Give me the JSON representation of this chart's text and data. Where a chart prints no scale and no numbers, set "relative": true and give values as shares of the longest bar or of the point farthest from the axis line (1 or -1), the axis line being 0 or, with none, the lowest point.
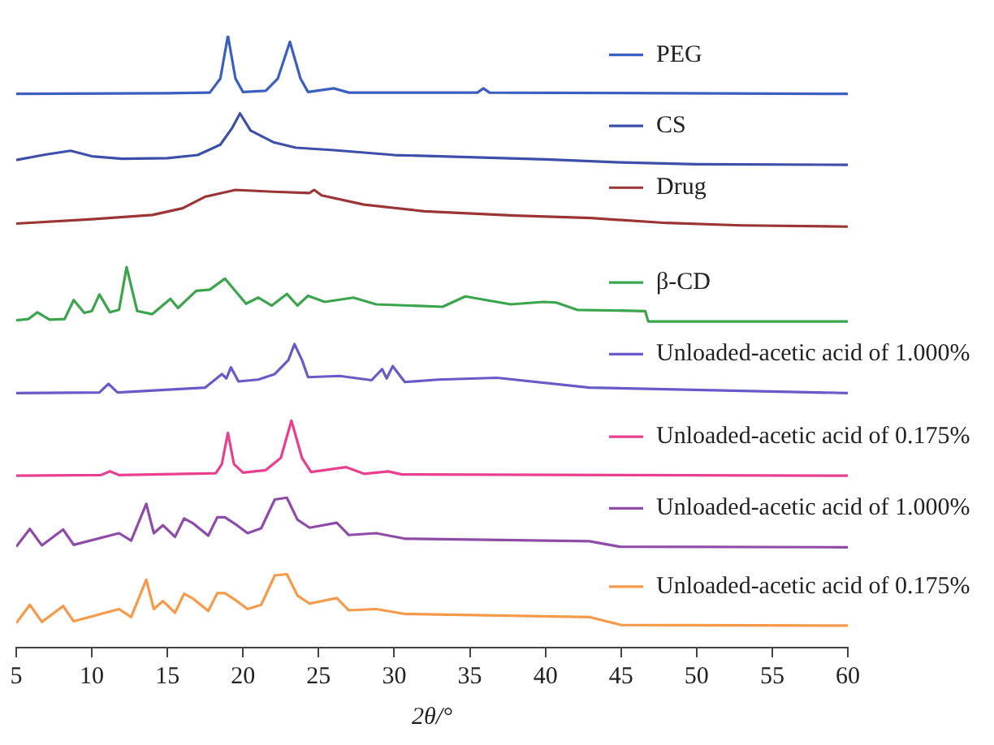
{
  "chart_data": {
    "type": "line",
    "relative": true,
    "xlabel": "2θ/°",
    "xlim": [
      5,
      60
    ],
    "xticks": [
      5,
      10,
      15,
      20,
      25,
      30,
      35,
      40,
      45,
      50,
      55,
      60
    ],
    "grid": false,
    "legend": "right",
    "marker": "none",
    "line_style": "solid",
    "series": [
      {
        "name": "PEG",
        "color": "#3b5fc0",
        "x": [
          5,
          15,
          17.8,
          18.5,
          19.0,
          19.5,
          20,
          21.5,
          22.3,
          23.1,
          23.8,
          24.3,
          26,
          27,
          35.5,
          35.9,
          36.3,
          60
        ],
        "values": [
          0.905,
          0.906,
          0.907,
          0.93,
          1.0,
          0.93,
          0.908,
          0.91,
          0.93,
          0.99,
          0.93,
          0.908,
          0.914,
          0.907,
          0.907,
          0.914,
          0.907,
          0.905
        ]
      },
      {
        "name": "CS",
        "color": "#3d4fa8",
        "x": [
          5,
          7,
          8.6,
          10,
          12,
          15,
          17,
          18.5,
          19.3,
          19.8,
          20.5,
          22,
          23.5,
          26,
          30,
          40,
          45,
          50,
          60
        ],
        "values": [
          0.797,
          0.806,
          0.812,
          0.803,
          0.799,
          0.8,
          0.805,
          0.822,
          0.85,
          0.873,
          0.845,
          0.826,
          0.817,
          0.813,
          0.805,
          0.798,
          0.793,
          0.79,
          0.789
        ]
      },
      {
        "name": "Drug",
        "color": "#9b3535",
        "x": [
          5,
          10,
          14,
          16,
          17.5,
          19.5,
          22,
          24.4,
          24.7,
          25.2,
          28,
          32,
          38,
          43,
          48,
          53,
          60
        ],
        "values": [
          0.693,
          0.7,
          0.707,
          0.718,
          0.737,
          0.748,
          0.745,
          0.743,
          0.748,
          0.739,
          0.724,
          0.713,
          0.706,
          0.702,
          0.694,
          0.69,
          0.688
        ]
      },
      {
        "name": "β-CD",
        "color": "#3aa54a",
        "x": [
          5,
          5.8,
          6.4,
          7.2,
          8.2,
          8.8,
          9.5,
          10.0,
          10.5,
          11.2,
          11.8,
          12.3,
          13.0,
          14.0,
          15.2,
          15.7,
          16.9,
          17.8,
          18.8,
          20.2,
          21.0,
          21.9,
          22.9,
          23.6,
          24.3,
          25.4,
          27.3,
          28.8,
          33.2,
          34.7,
          37.7,
          39.9,
          40.7,
          42.1,
          46.6,
          46.8,
          60
        ],
        "values": [
          0.535,
          0.537,
          0.548,
          0.536,
          0.537,
          0.568,
          0.547,
          0.55,
          0.577,
          0.548,
          0.552,
          0.622,
          0.55,
          0.545,
          0.57,
          0.555,
          0.583,
          0.585,
          0.603,
          0.562,
          0.572,
          0.559,
          0.578,
          0.559,
          0.575,
          0.565,
          0.572,
          0.561,
          0.557,
          0.574,
          0.561,
          0.565,
          0.564,
          0.552,
          0.55,
          0.533,
          0.533
        ]
      },
      {
        "name": "Unloaded-acetic acid of 1.000%",
        "color": "#6a5ac8",
        "x": [
          5,
          10.5,
          11.1,
          11.7,
          17.5,
          18.6,
          18.9,
          19.2,
          19.7,
          21.0,
          22.1,
          23.0,
          23.4,
          23.9,
          24.3,
          26.4,
          28.5,
          29.2,
          29.5,
          29.9,
          30.7,
          32.9,
          36.8,
          42.9,
          60
        ],
        "values": [
          0.416,
          0.417,
          0.431,
          0.417,
          0.425,
          0.447,
          0.44,
          0.458,
          0.435,
          0.438,
          0.447,
          0.47,
          0.496,
          0.47,
          0.442,
          0.444,
          0.437,
          0.455,
          0.44,
          0.46,
          0.434,
          0.438,
          0.441,
          0.425,
          0.416
        ]
      },
      {
        "name": "Unloaded-acetic acid of 0.175%",
        "color": "#e8408f",
        "x": [
          5,
          10.6,
          11.2,
          11.8,
          18.2,
          18.6,
          19.0,
          19.4,
          20,
          21.5,
          22.5,
          23.2,
          23.9,
          24.5,
          26.8,
          28,
          29.6,
          30.5,
          60
        ],
        "values": [
          0.281,
          0.282,
          0.288,
          0.282,
          0.285,
          0.3,
          0.351,
          0.3,
          0.286,
          0.29,
          0.31,
          0.371,
          0.31,
          0.287,
          0.295,
          0.284,
          0.288,
          0.283,
          0.281
        ]
      },
      {
        "name": "Unloaded-acetic acid of 1.000%",
        "color": "#8e4ba8",
        "x": [
          5,
          5.9,
          6.7,
          8.1,
          8.8,
          11.8,
          12.6,
          13.6,
          14.1,
          14.7,
          15.5,
          16.1,
          16.7,
          17.7,
          18.3,
          18.8,
          19.6,
          20.3,
          21.2,
          22.1,
          22.9,
          23.6,
          24.4,
          26.2,
          27.0,
          28.8,
          30.7,
          42.9,
          44.9,
          60
        ],
        "values": [
          0.165,
          0.194,
          0.167,
          0.193,
          0.168,
          0.187,
          0.175,
          0.235,
          0.187,
          0.2,
          0.181,
          0.211,
          0.203,
          0.183,
          0.213,
          0.213,
          0.2,
          0.187,
          0.195,
          0.242,
          0.245,
          0.209,
          0.196,
          0.204,
          0.184,
          0.187,
          0.178,
          0.174,
          0.165,
          0.164
        ]
      },
      {
        "name": "Unloaded-acetic acid of 0.175%",
        "color": "#f59a4a",
        "x": [
          5,
          5.9,
          6.7,
          8.1,
          8.8,
          11.8,
          12.6,
          13.6,
          14.1,
          14.7,
          15.5,
          16.1,
          16.7,
          17.7,
          18.3,
          18.8,
          19.6,
          20.3,
          21.2,
          22.1,
          22.9,
          23.6,
          24.4,
          26.2,
          27.0,
          28.8,
          30.7,
          42.9,
          45,
          60
        ],
        "values": [
          0.04,
          0.07,
          0.042,
          0.068,
          0.043,
          0.063,
          0.05,
          0.111,
          0.063,
          0.076,
          0.057,
          0.088,
          0.08,
          0.06,
          0.089,
          0.089,
          0.076,
          0.063,
          0.07,
          0.118,
          0.12,
          0.085,
          0.072,
          0.081,
          0.061,
          0.063,
          0.055,
          0.05,
          0.037,
          0.036
        ]
      }
    ]
  }
}
